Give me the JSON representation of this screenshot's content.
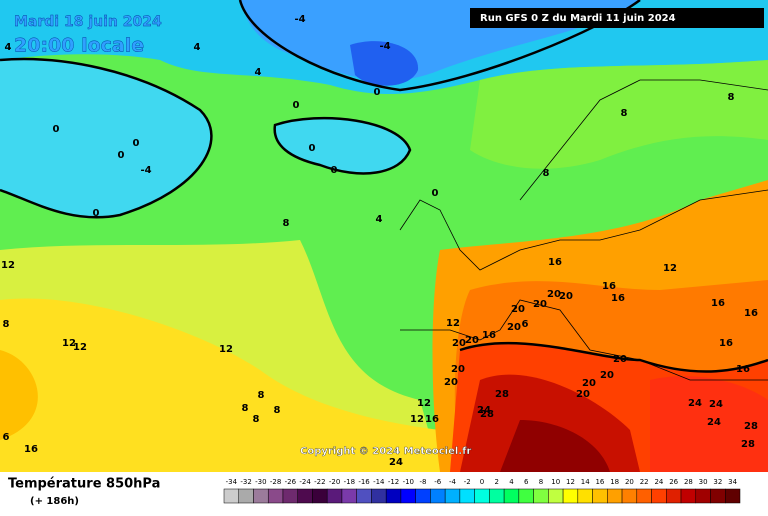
{
  "header": {
    "date": "Mardi 18 juin 2024",
    "time": "20:00 locale",
    "run": "Run GFS 0 Z du Mardi 11 juin 2024"
  },
  "map": {
    "copyright": "Copyright © 2024 Meteociel.fr",
    "labels": [
      "-4",
      "-4",
      "4",
      "4",
      "4",
      "0",
      "0",
      "0",
      "0",
      "0",
      "-4",
      "0",
      "0",
      "0",
      "0",
      "4",
      "8",
      "8",
      "8",
      "8",
      "12",
      "8",
      "16",
      "12",
      "16",
      "16",
      "20",
      "20",
      "20",
      "20",
      "20",
      "6",
      "16",
      "16",
      "16",
      "20",
      "12",
      "20",
      "16",
      "20",
      "16",
      "20",
      "20",
      "20",
      "20",
      "20",
      "28",
      "24",
      "24",
      "24",
      "28",
      "28",
      "12",
      "12",
      "12",
      "8",
      "8",
      "8",
      "8",
      "12",
      "12",
      "16",
      "24",
      "28",
      "16",
      "6",
      "24"
    ]
  },
  "footer": {
    "title": "Température 850hPa",
    "subtitle": "(+ 186h)"
  },
  "colorbar": {
    "labels": [
      -34,
      -32,
      -30,
      -28,
      -26,
      -24,
      -22,
      -20,
      -18,
      -16,
      -14,
      -12,
      -10,
      -8,
      -6,
      -4,
      -2,
      0,
      2,
      4,
      6,
      8,
      10,
      12,
      14,
      16,
      18,
      20,
      22,
      24,
      26,
      28,
      30,
      32,
      34
    ],
    "colors": [
      "#cccccc",
      "#aaaaaa",
      "#9b7b9b",
      "#8a4a8a",
      "#6e2a6e",
      "#4e0a4e",
      "#3a003a",
      "#5a1a7a",
      "#7a3aaa",
      "#5050c0",
      "#3030a0",
      "#0000c0",
      "#0000ff",
      "#0040ff",
      "#0080ff",
      "#00b0ff",
      "#00e0ff",
      "#00ffe0",
      "#00ffa0",
      "#00ff60",
      "#40ff40",
      "#80ff40",
      "#c0ff40",
      "#ffff00",
      "#ffe000",
      "#ffc000",
      "#ffa000",
      "#ff8000",
      "#ff6000",
      "#ff4000",
      "#e02000",
      "#c00000",
      "#a00000",
      "#800000",
      "#600000"
    ]
  }
}
